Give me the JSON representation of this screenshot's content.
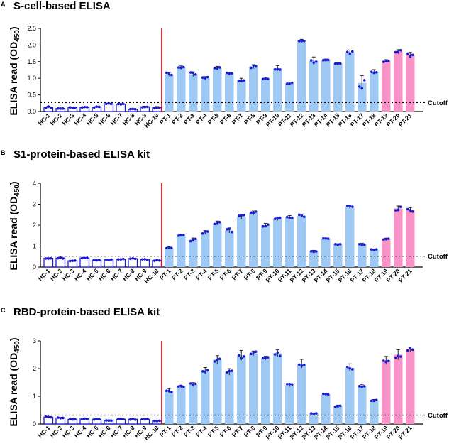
{
  "chart_data": [
    {
      "type": "bar",
      "panel": "A",
      "title": "S-cell-based ELISA",
      "ylabel_main": "ELISA read (OD",
      "ylabel_sub": "450",
      "ylabel_close": ")",
      "ylim": [
        0,
        2.5
      ],
      "yticks": [
        "0.0",
        "0.5",
        "1.0",
        "1.5",
        "2.0",
        "2.5"
      ],
      "cutoff": 0.27,
      "cutoff_label": "Cutoff",
      "categories": [
        "HC-1",
        "HC-2",
        "HC-3",
        "HC-4",
        "HC-5",
        "HC-6",
        "HC-7",
        "HC-8",
        "HC-9",
        "HC-10",
        "PT-1",
        "PT-2",
        "PT-3",
        "PT-4",
        "PT-5",
        "PT-6",
        "PT-7",
        "PT-8",
        "PT-9",
        "PT-10",
        "PT-11",
        "PT-12",
        "PT-13",
        "PT-14",
        "PT-15",
        "PT-16",
        "PT-17",
        "PT-18",
        "PT-19",
        "PT-20",
        "PT-21"
      ],
      "groups": [
        "HC",
        "HC",
        "HC",
        "HC",
        "HC",
        "HC",
        "HC",
        "HC",
        "HC",
        "HC",
        "PT",
        "PT",
        "PT",
        "PT",
        "PT",
        "PT",
        "PT",
        "PT",
        "PT",
        "PT",
        "PT",
        "PT",
        "PT",
        "PT",
        "PT",
        "PT",
        "PT",
        "PT",
        "PTP",
        "PTP",
        "PTP"
      ],
      "values": [
        0.13,
        0.09,
        0.12,
        0.12,
        0.13,
        0.23,
        0.22,
        0.07,
        0.14,
        0.12,
        1.12,
        1.33,
        1.12,
        1.0,
        1.31,
        1.15,
        0.95,
        1.35,
        0.98,
        1.3,
        0.85,
        2.14,
        1.52,
        1.55,
        1.45,
        1.78,
        0.86,
        1.2,
        1.52,
        1.8,
        1.7
      ],
      "errors": [
        0.03,
        0.02,
        0.02,
        0.02,
        0.02,
        0.02,
        0.02,
        0.02,
        0.02,
        0.03,
        0.06,
        0.04,
        0.07,
        0.05,
        0.05,
        0.03,
        0.05,
        0.06,
        0.02,
        0.08,
        0.03,
        0.03,
        0.12,
        0.03,
        0.02,
        0.07,
        0.22,
        0.06,
        0.04,
        0.06,
        0.08
      ]
    },
    {
      "type": "bar",
      "panel": "B",
      "title": "S1-protein-based ELISA kit",
      "ylabel_main": "ELISA read (OD",
      "ylabel_sub": "450",
      "ylabel_close": ")",
      "ylim": [
        0,
        4
      ],
      "yticks": [
        "0",
        "1",
        "2",
        "3",
        "4"
      ],
      "cutoff": 0.52,
      "cutoff_label": "Cutoff",
      "categories": [
        "HC-1",
        "HC-2",
        "HC-3",
        "HC-4",
        "HC-5",
        "HC-6",
        "HC-7",
        "HC-8",
        "HC-9",
        "HC-10",
        "PT-1",
        "PT-2",
        "PT-3",
        "PT-4",
        "PT-5",
        "PT-6",
        "PT-7",
        "PT-8",
        "PT-9",
        "PT-10",
        "PT-11",
        "PT-12",
        "PT-13",
        "PT-14",
        "PT-15",
        "PT-16",
        "PT-17",
        "PT-18",
        "PT-19",
        "PT-20",
        "PT-21"
      ],
      "groups": [
        "HC",
        "HC",
        "HC",
        "HC",
        "HC",
        "HC",
        "HC",
        "HC",
        "HC",
        "HC",
        "PT",
        "PT",
        "PT",
        "PT",
        "PT",
        "PT",
        "PT",
        "PT",
        "PT",
        "PT",
        "PT",
        "PT",
        "PT",
        "PT",
        "PT",
        "PT",
        "PT",
        "PT",
        "PTP",
        "PTP",
        "PTP"
      ],
      "values": [
        0.42,
        0.43,
        0.3,
        0.43,
        0.33,
        0.36,
        0.37,
        0.4,
        0.36,
        0.32,
        0.92,
        1.5,
        1.3,
        1.65,
        2.1,
        1.75,
        2.4,
        2.58,
        2.0,
        2.3,
        2.38,
        2.45,
        0.75,
        1.35,
        1.08,
        2.88,
        1.08,
        0.82,
        1.32,
        2.8,
        2.72
      ]
    },
    {
      "type": "bar",
      "panel": "C",
      "title": "RBD-protein-based ELISA kit",
      "ylabel_main": "ELISA read (OD",
      "ylabel_sub": "450",
      "ylabel_close": ")",
      "ylim": [
        0,
        3
      ],
      "yticks": [
        "0",
        "1",
        "2",
        "3"
      ],
      "cutoff": 0.32,
      "cutoff_label": "Cutoff",
      "categories": [
        "HC-1",
        "HC-2",
        "HC-3",
        "HC-4",
        "HC-5",
        "HC-6",
        "HC-7",
        "HC-8",
        "HC-9",
        "HC-10",
        "PT-1",
        "PT-2",
        "PT-3",
        "PT-4",
        "PT-5",
        "PT-6",
        "PT-7",
        "PT-8",
        "PT-9",
        "PT-10",
        "PT-11",
        "PT-12",
        "PT-13",
        "PT-14",
        "PT-15",
        "PT-16",
        "PT-17",
        "PT-18",
        "PT-19",
        "PT-20",
        "PT-21"
      ],
      "groups": [
        "HC",
        "HC",
        "HC",
        "HC",
        "HC",
        "HC",
        "HC",
        "HC",
        "HC",
        "HC",
        "PT",
        "PT",
        "PT",
        "PT",
        "PT",
        "PT",
        "PT",
        "PT",
        "PT",
        "PT",
        "PT",
        "PT",
        "PT",
        "PT",
        "PT",
        "PT",
        "PT",
        "PT",
        "PTP",
        "PTP",
        "PTP"
      ],
      "values": [
        0.25,
        0.22,
        0.17,
        0.18,
        0.17,
        0.13,
        0.17,
        0.17,
        0.17,
        0.11,
        1.2,
        1.35,
        1.42,
        1.92,
        2.32,
        1.88,
        2.48,
        2.55,
        2.38,
        2.55,
        1.4,
        2.18,
        0.38,
        1.06,
        0.65,
        2.03,
        1.36,
        0.84,
        2.3,
        2.5,
        2.68
      ]
    }
  ],
  "colors": {
    "hc_fill": "#ffffff",
    "hc_stroke": "#1c1cd6",
    "pt_fill": "#9ec9f5",
    "pink_fill": "#f793c6",
    "dot": "#1a1ad2",
    "divider": "#e8141e",
    "axis": "#000000"
  }
}
